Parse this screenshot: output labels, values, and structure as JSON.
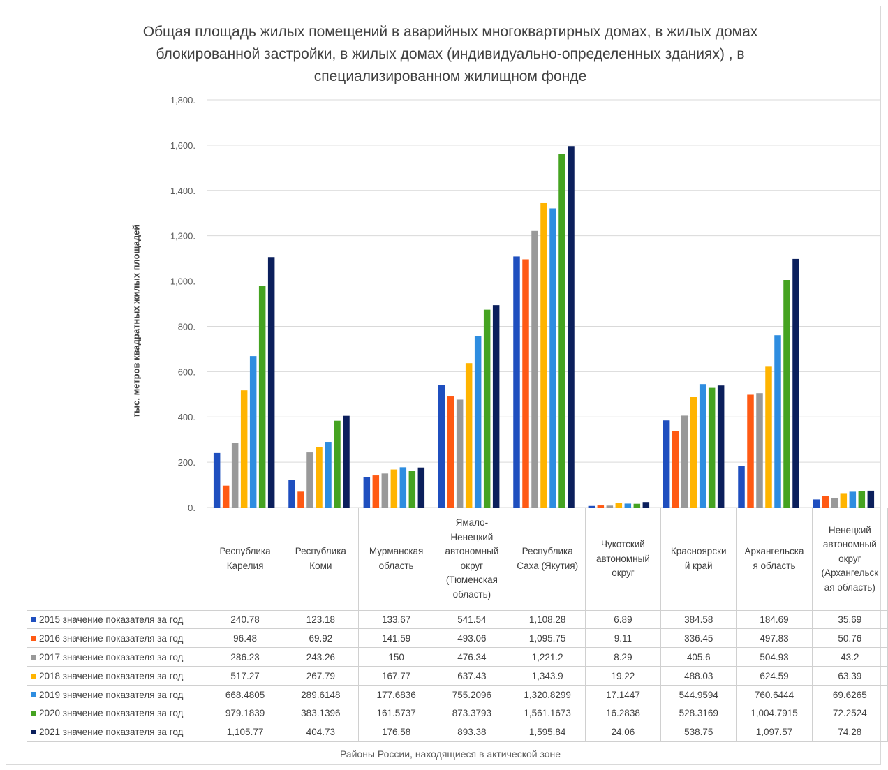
{
  "chart_data": {
    "type": "bar",
    "title": "Общая площадь жилых помещений в аварийных многоквартирных домах, в жилых домах блокированной застройки, в жилых домах (индивидуально-определенных зданиях) , в специализированном жилищном фонде",
    "title_lines": [
      "Общая площадь жилых помещений в аварийных многоквартирных домах, в жилых домах",
      "блокированной застройки, в жилых домах (индивидуально-определенных зданиях) , в",
      "специализированном жилищном фонде"
    ],
    "xlabel": "Районы России, находящиеся в актической зоне",
    "ylabel": "тыс. метров квадратных жилых площадей",
    "ylim": [
      0,
      1800
    ],
    "yticks": [
      "0.",
      "200.",
      "400.",
      "600.",
      "800.",
      "1,000.",
      "1,200.",
      "1,400.",
      "1,600.",
      "1,800."
    ],
    "grid": true,
    "legend": "data table below chart",
    "categories": [
      "Республика Карелия",
      "Республика Коми",
      "Мурманская область",
      "Ямало-Ненецкий автономный округ (Тюменская область)",
      "Республика Саха (Якутия)",
      "Чукотский автономный округ",
      "Красноярский край",
      "Архангельская область",
      "Ненецкий автономный округ (Архангельская область)"
    ],
    "category_lines": [
      [
        "Республика",
        "Карелия"
      ],
      [
        "Республика",
        "Коми"
      ],
      [
        "Мурманская",
        "область"
      ],
      [
        "Ямало-",
        "Ненецкий",
        "автономный",
        "округ",
        "(Тюменская",
        "область)"
      ],
      [
        "Республика",
        "Саха (Якутия)"
      ],
      [
        "Чукотский",
        "автономный",
        "округ"
      ],
      [
        "Красноярски",
        "й край"
      ],
      [
        "Архангельска",
        "я область"
      ],
      [
        "Ненецкий",
        "автономный",
        "округ",
        "(Архангельск",
        "ая область)"
      ]
    ],
    "series": [
      {
        "name": "2015 значение показателя за год",
        "color": "#1f4fbf",
        "values": [
          240.78,
          123.18,
          133.67,
          541.54,
          1108.28,
          6.89,
          384.58,
          184.69,
          35.69
        ],
        "labels": [
          "240.78",
          "123.18",
          "133.67",
          "541.54",
          "1,108.28",
          "6.89",
          "384.58",
          "184.69",
          "35.69"
        ]
      },
      {
        "name": "2016 значение показателя за год",
        "color": "#ff5a14",
        "values": [
          96.48,
          69.92,
          141.59,
          493.06,
          1095.75,
          9.11,
          336.45,
          497.83,
          50.76
        ],
        "labels": [
          "96.48",
          "69.92",
          "141.59",
          "493.06",
          "1,095.75",
          "9.11",
          "336.45",
          "497.83",
          "50.76"
        ]
      },
      {
        "name": "2017 значение показателя за год",
        "color": "#999999",
        "values": [
          286.23,
          243.26,
          150,
          476.34,
          1221.2,
          8.29,
          405.6,
          504.93,
          43.2
        ],
        "labels": [
          "286.23",
          "243.26",
          "150",
          "476.34",
          "1,221.2",
          "8.29",
          "405.6",
          "504.93",
          "43.2"
        ]
      },
      {
        "name": "2018 значение показателя за год",
        "color": "#ffb400",
        "values": [
          517.27,
          267.79,
          167.77,
          637.43,
          1343.9,
          19.22,
          488.03,
          624.59,
          63.39
        ],
        "labels": [
          "517.27",
          "267.79",
          "167.77",
          "637.43",
          "1,343.9",
          "19.22",
          "488.03",
          "624.59",
          "63.39"
        ]
      },
      {
        "name": "2019 значение показателя за год",
        "color": "#2e8de0",
        "values": [
          668.4805,
          289.6148,
          177.6836,
          755.2096,
          1320.8299,
          17.1447,
          544.9594,
          760.6444,
          69.6265
        ],
        "labels": [
          "668.4805",
          "289.6148",
          "177.6836",
          "755.2096",
          "1,320.8299",
          "17.1447",
          "544.9594",
          "760.6444",
          "69.6265"
        ]
      },
      {
        "name": "2020 значение показателя за год",
        "color": "#45a321",
        "values": [
          979.1839,
          383.1396,
          161.5737,
          873.3793,
          1561.1673,
          16.2838,
          528.3169,
          1004.7915,
          72.2524
        ],
        "labels": [
          "979.1839",
          "383.1396",
          "161.5737",
          "873.3793",
          "1,561.1673",
          "16.2838",
          "528.3169",
          "1,004.7915",
          "72.2524"
        ]
      },
      {
        "name": "2021 значение показателя за год",
        "color": "#0b1f5c",
        "values": [
          1105.77,
          404.73,
          176.58,
          893.38,
          1595.84,
          24.06,
          538.75,
          1097.57,
          74.28
        ],
        "labels": [
          "1,105.77",
          "404.73",
          "176.58",
          "893.38",
          "1,595.84",
          "24.06",
          "538.75",
          "1,097.57",
          "74.28"
        ]
      }
    ]
  }
}
